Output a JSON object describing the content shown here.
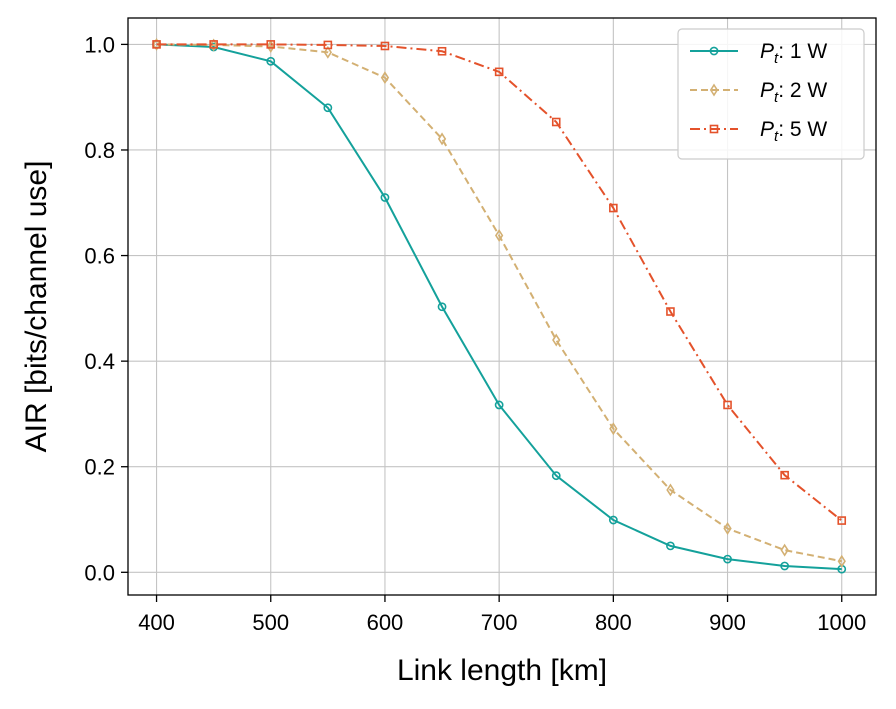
{
  "chart_data": {
    "type": "line",
    "xlabel": "Link length [km]",
    "ylabel": "AIR [bits/channel use]",
    "xlim": [
      375,
      1030
    ],
    "ylim": [
      -0.043,
      1.05
    ],
    "xticks": [
      400,
      500,
      600,
      700,
      800,
      900,
      1000
    ],
    "yticks": [
      "0.0",
      "0.2",
      "0.4",
      "0.6",
      "0.8",
      "1.0"
    ],
    "ytick_values": [
      0.0,
      0.2,
      0.4,
      0.6,
      0.8,
      1.0
    ],
    "grid": true,
    "legend_position": "top-right",
    "x": [
      400,
      450,
      500,
      550,
      600,
      650,
      700,
      750,
      800,
      850,
      900,
      950,
      1000
    ],
    "series": [
      {
        "name": "1 W",
        "label_prefix": "P",
        "label_subscript": "t",
        "color": "#14a19b",
        "dash": "solid",
        "marker": "circle",
        "values": [
          1.0,
          0.995,
          0.968,
          0.88,
          0.71,
          0.503,
          0.317,
          0.183,
          0.099,
          0.05,
          0.025,
          0.012,
          0.006
        ]
      },
      {
        "name": "2 W",
        "label_prefix": "P",
        "label_subscript": "t",
        "color": "#d3b073",
        "dash": "dashed",
        "marker": "diamond",
        "values": [
          1.0,
          0.999,
          0.996,
          0.985,
          0.937,
          0.821,
          0.638,
          0.44,
          0.272,
          0.156,
          0.083,
          0.042,
          0.021
        ]
      },
      {
        "name": "5 W",
        "label_prefix": "P",
        "label_subscript": "t",
        "color": "#e4522b",
        "dash": "dashdot",
        "marker": "square",
        "values": [
          1.0,
          1.0,
          1.0,
          0.999,
          0.997,
          0.987,
          0.948,
          0.853,
          0.69,
          0.494,
          0.317,
          0.184,
          0.098
        ]
      }
    ]
  }
}
